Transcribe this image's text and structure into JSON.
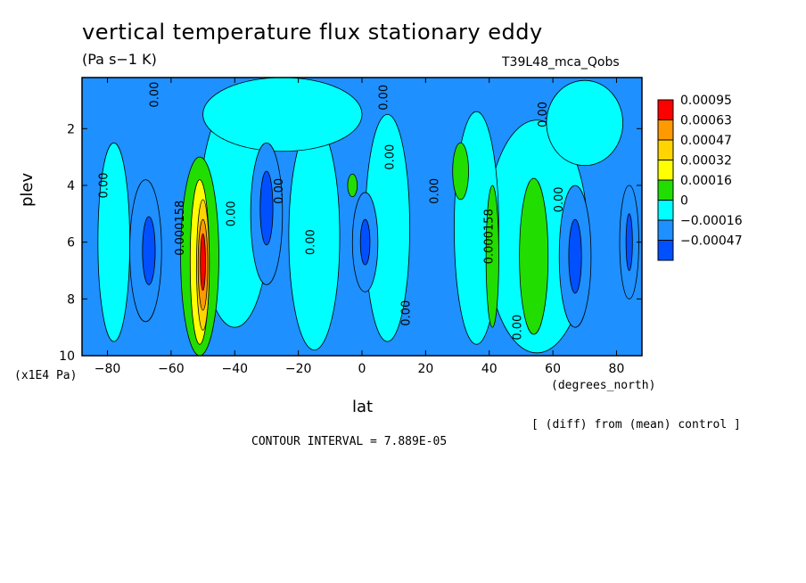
{
  "chart_data": {
    "type": "heatmap",
    "title": "vertical temperature flux stationary eddy",
    "units": "(Pa s−1 K)",
    "run_label": "T39L48_mca_Qobs",
    "xlabel": "lat",
    "xunit": "(degrees_north)",
    "ylabel": "plev",
    "yunit": "(x1E4 Pa)",
    "xlim": [
      -88,
      88
    ],
    "ylim": [
      0.2,
      10
    ],
    "y_inverted": true,
    "x_ticks": [
      "-80",
      "-60",
      "-40",
      "-20",
      "0",
      "20",
      "40",
      "60",
      "80"
    ],
    "x_tick_values": [
      -80,
      -60,
      -40,
      -20,
      0,
      20,
      40,
      60,
      80
    ],
    "y_ticks": [
      "2",
      "4",
      "6",
      "8",
      "10"
    ],
    "y_tick_values": [
      2,
      4,
      6,
      8,
      10
    ],
    "contour_interval_text": "CONTOUR INTERVAL = 7.889E-05",
    "note": "[ (diff) from (mean) control ]",
    "legend": {
      "placement": "right",
      "levels": [
        "0.00095",
        "0.00063",
        "0.00047",
        "0.00032",
        "0.00016",
        "0",
        "−0.00016",
        "−0.00047"
      ],
      "colors": [
        "#ff0000",
        "#ff9900",
        "#ffd400",
        "#ffff00",
        "#22dd00",
        "#00ffff",
        "#1e90ff",
        "#0050ff"
      ]
    },
    "background_color": "#1e90ff",
    "regions": [
      {
        "color": "#00ffff",
        "lat": -78,
        "plev": 6.0,
        "w": 10,
        "h": 7.0
      },
      {
        "color": "#00ffff",
        "lat": -40,
        "plev": 5.0,
        "w": 22,
        "h": 8.0
      },
      {
        "color": "#00ffff",
        "lat": -15,
        "plev": 5.8,
        "w": 16,
        "h": 8.0
      },
      {
        "color": "#00ffff",
        "lat": 8,
        "plev": 5.5,
        "w": 14,
        "h": 8.0
      },
      {
        "color": "#00ffff",
        "lat": -25,
        "plev": 1.5,
        "w": 50,
        "h": 2.6
      },
      {
        "color": "#00ffff",
        "lat": 55,
        "plev": 5.8,
        "w": 32,
        "h": 8.2
      },
      {
        "color": "#00ffff",
        "lat": 36,
        "plev": 5.5,
        "w": 14,
        "h": 8.2
      },
      {
        "color": "#00ffff",
        "lat": 70,
        "plev": 1.8,
        "w": 24,
        "h": 3.0
      },
      {
        "color": "#1e90ff",
        "lat": -68,
        "plev": 6.3,
        "w": 10,
        "h": 5.0
      },
      {
        "color": "#1e90ff",
        "lat": -30,
        "plev": 5.0,
        "w": 10,
        "h": 5.0
      },
      {
        "color": "#1e90ff",
        "lat": 1,
        "plev": 6.0,
        "w": 8,
        "h": 3.5
      },
      {
        "color": "#1e90ff",
        "lat": 67,
        "plev": 6.5,
        "w": 10,
        "h": 5.0
      },
      {
        "color": "#1e90ff",
        "lat": 84,
        "plev": 6.0,
        "w": 6,
        "h": 4.0
      },
      {
        "color": "#0050ff",
        "lat": -67,
        "plev": 6.3,
        "w": 4,
        "h": 2.4
      },
      {
        "color": "#0050ff",
        "lat": -30,
        "plev": 4.8,
        "w": 4,
        "h": 2.6
      },
      {
        "color": "#0050ff",
        "lat": 1,
        "plev": 6.0,
        "w": 3,
        "h": 1.6
      },
      {
        "color": "#0050ff",
        "lat": 67,
        "plev": 6.5,
        "w": 4,
        "h": 2.6
      },
      {
        "color": "#0050ff",
        "lat": 84,
        "plev": 6.0,
        "w": 2,
        "h": 2.0
      },
      {
        "color": "#22dd00",
        "lat": -51,
        "plev": 6.5,
        "w": 12,
        "h": 7.0
      },
      {
        "color": "#22dd00",
        "lat": 41,
        "plev": 6.5,
        "w": 4,
        "h": 5.0
      },
      {
        "color": "#22dd00",
        "lat": 54,
        "plev": 6.5,
        "w": 9,
        "h": 5.5
      },
      {
        "color": "#22dd00",
        "lat": 31,
        "plev": 3.5,
        "w": 5,
        "h": 2.0
      },
      {
        "color": "#22dd00",
        "lat": -3,
        "plev": 4.0,
        "w": 3,
        "h": 0.8
      },
      {
        "color": "#ffff00",
        "lat": -51,
        "plev": 6.7,
        "w": 6,
        "h": 5.8
      },
      {
        "color": "#ffd400",
        "lat": -50,
        "plev": 6.8,
        "w": 4,
        "h": 4.6
      },
      {
        "color": "#ff9900",
        "lat": -50,
        "plev": 6.8,
        "w": 3,
        "h": 3.2
      },
      {
        "color": "#ff0000",
        "lat": -50,
        "plev": 6.7,
        "w": 1.6,
        "h": 2.0
      }
    ],
    "contour_labels": [
      {
        "text": "0.00",
        "lat": -64,
        "plev": 0.8
      },
      {
        "text": "0.00",
        "lat": 8,
        "plev": 0.9
      },
      {
        "text": "0.00",
        "lat": 58,
        "plev": 1.5
      },
      {
        "text": "0.00",
        "lat": 10,
        "plev": 3.0
      },
      {
        "text": "0.00",
        "lat": -80,
        "plev": 4.0
      },
      {
        "text": "0.000158",
        "lat": -56,
        "plev": 5.5
      },
      {
        "text": "0.00",
        "lat": -40,
        "plev": 5.0
      },
      {
        "text": "0.00",
        "lat": -25,
        "plev": 4.2
      },
      {
        "text": "0.00",
        "lat": -15,
        "plev": 6.0
      },
      {
        "text": "0.00",
        "lat": 24,
        "plev": 4.2
      },
      {
        "text": "0.000158",
        "lat": 41,
        "plev": 5.8
      },
      {
        "text": "0.00",
        "lat": 15,
        "plev": 8.5
      },
      {
        "text": "0.00",
        "lat": 50,
        "plev": 9.0
      },
      {
        "text": "0.00",
        "lat": 63,
        "plev": 4.5
      }
    ]
  }
}
